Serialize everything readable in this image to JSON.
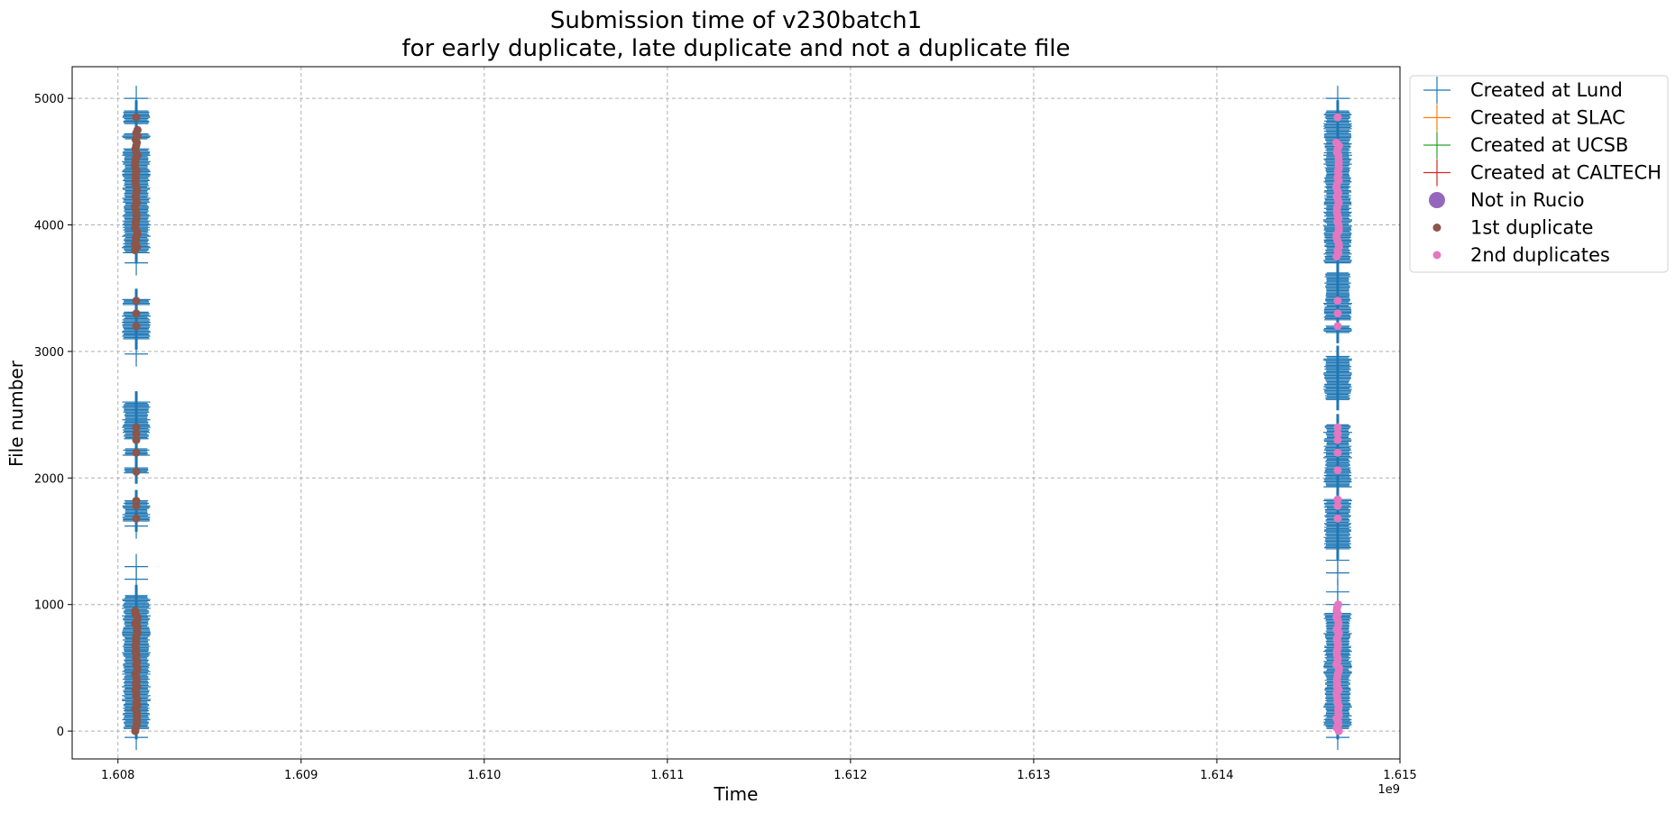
{
  "chart_data": {
    "type": "scatter",
    "title_line1": "Submission time of v230batch1",
    "title_line2": "for early duplicate, late duplicate and not a duplicate file",
    "xlabel": "Time",
    "ylabel": "File number",
    "x_offset_label": "1e9",
    "xlim": [
      1.60775,
      1.615
    ],
    "ylim": [
      -220,
      5250
    ],
    "x_ticks": [
      1.608,
      1.609,
      1.61,
      1.611,
      1.612,
      1.613,
      1.614,
      1.615
    ],
    "x_tick_labels": [
      "1.608",
      "1.609",
      "1.610",
      "1.611",
      "1.612",
      "1.613",
      "1.614",
      "1.615"
    ],
    "y_ticks": [
      0,
      1000,
      2000,
      3000,
      4000,
      5000
    ],
    "y_tick_labels": [
      "0",
      "1000",
      "2000",
      "3000",
      "4000",
      "5000"
    ],
    "grid": true,
    "legend_position": "outside-top-right",
    "series": [
      {
        "name": "Created at Lund",
        "marker": "plus",
        "color": "#1f77b4",
        "clusters": [
          {
            "x": 1.6081,
            "y_ranges": [
              [
                20,
                1070
              ],
              [
                1660,
                1820
              ],
              [
                2040,
                2080
              ],
              [
                2180,
                2230
              ],
              [
                2310,
                2600
              ],
              [
                3100,
                3310
              ],
              [
                3370,
                3410
              ],
              [
                3780,
                4600
              ],
              [
                4680,
                4720
              ],
              [
                4800,
                4900
              ]
            ],
            "isolated_y": [
              -50,
              1200,
              1300,
              1620,
              2980,
              3700,
              5000
            ]
          },
          {
            "x": 1.61466,
            "y_ranges": [
              [
                20,
                930
              ],
              [
                1440,
                1830
              ],
              [
                1930,
                2420
              ],
              [
                2620,
                2960
              ],
              [
                3150,
                3200
              ],
              [
                3250,
                3620
              ],
              [
                3700,
                4900
              ]
            ],
            "isolated_y": [
              -50,
              450,
              600,
              1000,
              1100,
              1250,
              1350,
              5000
            ]
          }
        ]
      },
      {
        "name": "Created at SLAC",
        "marker": "plus",
        "color": "#ff7f0e",
        "points": []
      },
      {
        "name": "Created at UCSB",
        "marker": "plus",
        "color": "#2ca02c",
        "points": []
      },
      {
        "name": "Created at CALTECH",
        "marker": "plus",
        "color": "#d62728",
        "points": []
      },
      {
        "name": "Not in Rucio",
        "marker": "circle-large",
        "color": "#9467bd",
        "points": []
      },
      {
        "name": "1st duplicate",
        "marker": "circle",
        "color": "#8c564b",
        "clusters": [
          {
            "x": 1.6081,
            "y_ranges": [
              [
                0,
                950
              ],
              [
                3800,
                4750
              ]
            ],
            "isolated_y": [
              1680,
              1780,
              1820,
              2050,
              2200,
              2300,
              2350,
              2400,
              3200,
              3300,
              3400,
              4850
            ]
          }
        ]
      },
      {
        "name": "2nd duplicates",
        "marker": "circle",
        "color": "#e377c2",
        "clusters": [
          {
            "x": 1.61466,
            "y_ranges": [
              [
                0,
                1000
              ],
              [
                3750,
                4650
              ]
            ],
            "isolated_y": [
              1680,
              1780,
              1830,
              2060,
              2200,
              2300,
              2350,
              2400,
              3200,
              3300,
              3400,
              4850
            ]
          }
        ]
      }
    ]
  }
}
